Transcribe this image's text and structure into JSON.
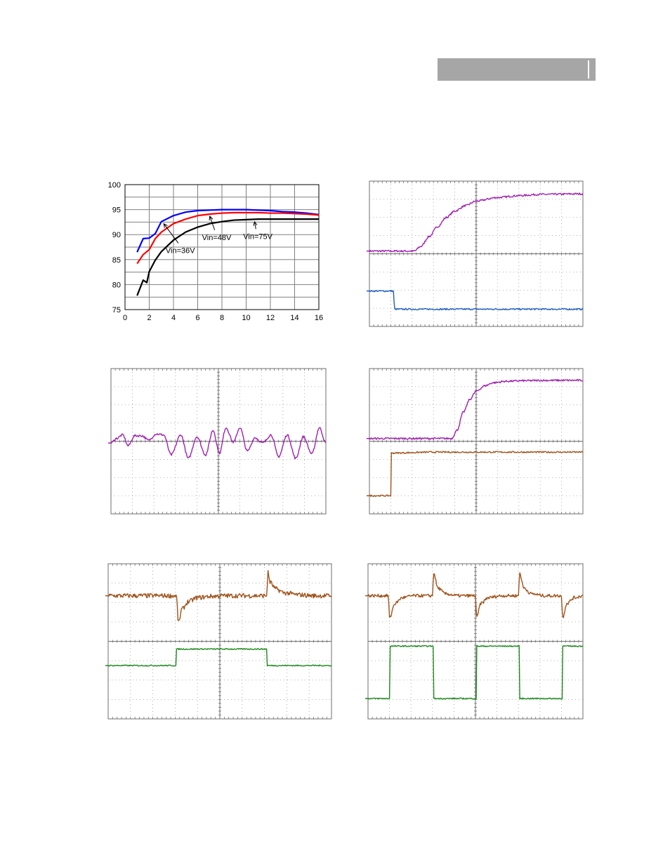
{
  "header": {
    "bar_color": "#a6a6a6"
  },
  "chart_data": [
    {
      "id": "efficiency",
      "type": "line",
      "xlim": [
        0,
        16
      ],
      "ylim": [
        75,
        100
      ],
      "xticks": [
        0,
        2,
        4,
        6,
        8,
        10,
        12,
        14,
        16
      ],
      "yticks": [
        75,
        80,
        85,
        90,
        95,
        100
      ],
      "grid": true,
      "series": [
        {
          "name": "Vin=36V",
          "color": "#0000ff",
          "x": [
            1,
            1.5,
            2,
            2.5,
            3,
            4,
            5,
            6,
            7,
            8,
            9,
            10,
            11,
            12,
            13,
            14,
            15,
            16
          ],
          "y": [
            86.5,
            89.2,
            89.3,
            90.2,
            92.6,
            93.8,
            94.5,
            94.8,
            94.9,
            95.0,
            95.0,
            95.0,
            94.9,
            94.8,
            94.6,
            94.5,
            94.3,
            94.0
          ]
        },
        {
          "name": "Vin=48V",
          "color": "#ff0000",
          "x": [
            1,
            1.5,
            2,
            2.5,
            3,
            4,
            5,
            6,
            7,
            8,
            9,
            10,
            11,
            12,
            13,
            14,
            15,
            16
          ],
          "y": [
            84.2,
            86.0,
            87.0,
            89.2,
            90.5,
            92.2,
            93.1,
            93.8,
            94.1,
            94.3,
            94.4,
            94.4,
            94.4,
            94.3,
            94.3,
            94.2,
            94.1,
            93.9
          ]
        },
        {
          "name": "Vin=75V",
          "color": "#000000",
          "x": [
            1,
            1.5,
            1.8,
            2,
            2.5,
            3,
            4,
            5,
            6,
            7,
            8,
            9,
            10,
            11,
            12,
            13,
            14,
            15,
            16
          ],
          "y": [
            77.8,
            80.9,
            80.4,
            82.6,
            84.9,
            86.6,
            88.9,
            90.5,
            91.5,
            92.2,
            92.6,
            92.9,
            93.0,
            93.1,
            93.1,
            93.1,
            93.1,
            93.1,
            93.1
          ]
        }
      ],
      "annotations": [
        {
          "text": "Vin=36V",
          "at": [
            4.4,
            86.9
          ],
          "arrow_to": [
            3.2,
            92.6
          ]
        },
        {
          "text": "Vin=48V",
          "at": [
            7.4,
            89.5
          ],
          "arrow_to": [
            7.0,
            94.1
          ]
        },
        {
          "text": "Vin=75V",
          "at": [
            10.8,
            89.7
          ],
          "arrow_to": [
            10.7,
            93.0
          ]
        }
      ]
    },
    {
      "id": "startup-scope-1",
      "type": "line",
      "xlim": [
        0,
        10
      ],
      "ylim": [
        0,
        8
      ],
      "grid": true,
      "series": [
        {
          "color": "#a020b0",
          "noise": 0.05,
          "x": [
            0,
            2.1,
            2.4,
            2.8,
            3.2,
            3.6,
            4.0,
            4.5,
            5.0,
            6.0,
            7.0,
            8.0,
            10.0
          ],
          "y": [
            4.15,
            4.15,
            4.4,
            4.95,
            5.5,
            6.0,
            6.35,
            6.65,
            6.9,
            7.1,
            7.2,
            7.27,
            7.3
          ]
        },
        {
          "color": "#1f5fbf",
          "noise": 0.04,
          "x": [
            0,
            1.15,
            1.16,
            10.0
          ],
          "y": [
            1.95,
            1.95,
            0.95,
            0.95
          ]
        }
      ]
    },
    {
      "id": "ripple-scope",
      "type": "line",
      "xlim": [
        0,
        10
      ],
      "ylim": [
        0,
        8
      ],
      "grid": true,
      "series": [
        {
          "color": "#a020b0",
          "noise": 0.06,
          "x": [
            0,
            0.25,
            0.55,
            0.8,
            1.1,
            1.45,
            1.75,
            2.1,
            2.45,
            2.8,
            3.25,
            3.6,
            4.0,
            4.4,
            4.75,
            5.05,
            5.35,
            5.7,
            6.0,
            6.35,
            6.7,
            7.05,
            7.45,
            7.8,
            8.2,
            8.6,
            8.95,
            9.35,
            9.7,
            10.0
          ],
          "y": [
            3.9,
            4.15,
            4.35,
            3.75,
            4.3,
            4.3,
            4.05,
            4.4,
            4.35,
            3.25,
            4.35,
            3.05,
            4.25,
            3.25,
            4.6,
            3.35,
            4.75,
            3.95,
            4.75,
            3.45,
            4.2,
            3.9,
            4.35,
            3.15,
            4.35,
            3.05,
            4.25,
            3.3,
            4.75,
            3.9
          ]
        }
      ]
    },
    {
      "id": "startup-scope-2",
      "type": "line",
      "xlim": [
        0,
        10
      ],
      "ylim": [
        0,
        8
      ],
      "grid": true,
      "series": [
        {
          "color": "#a020b0",
          "noise": 0.05,
          "x": [
            0,
            3.85,
            4.1,
            4.4,
            4.7,
            5.0,
            5.4,
            5.8,
            6.4,
            7.2,
            8.2,
            10.0
          ],
          "y": [
            4.15,
            4.15,
            4.6,
            5.6,
            6.3,
            6.75,
            7.05,
            7.22,
            7.3,
            7.33,
            7.35,
            7.35
          ]
        },
        {
          "color": "#a0521a",
          "noise": 0.04,
          "x": [
            0,
            1.0,
            1.02,
            3.0,
            10.0
          ],
          "y": [
            1.0,
            1.0,
            3.35,
            3.4,
            3.4
          ]
        }
      ]
    },
    {
      "id": "transient-scope-1",
      "type": "line",
      "xlim": [
        0,
        10
      ],
      "ylim": [
        0,
        8
      ],
      "grid": true,
      "series": [
        {
          "color": "#a0521a",
          "noise": 0.12,
          "x": [
            0,
            3.05,
            3.15,
            3.3,
            3.6,
            4.0,
            4.6,
            5.2,
            7.1,
            7.15,
            7.25,
            7.5,
            7.9,
            8.5,
            9.2,
            10.0
          ],
          "y": [
            6.35,
            6.35,
            4.95,
            5.65,
            6.05,
            6.25,
            6.32,
            6.35,
            6.35,
            7.55,
            7.05,
            6.7,
            6.5,
            6.4,
            6.35,
            6.35
          ]
        },
        {
          "color": "#1a8a1a",
          "noise": 0.03,
          "x": [
            0,
            3.05,
            3.06,
            7.1,
            7.11,
            10.0
          ],
          "y": [
            2.75,
            2.75,
            3.6,
            3.6,
            2.75,
            2.75
          ]
        }
      ]
    },
    {
      "id": "transient-scope-2",
      "type": "line",
      "xlim": [
        0,
        10
      ],
      "ylim": [
        0,
        8
      ],
      "grid": true,
      "series": [
        {
          "color": "#a0521a",
          "noise": 0.08,
          "x": [
            0,
            0.95,
            1.0,
            1.25,
            1.6,
            2.1,
            3.0,
            3.05,
            3.25,
            3.6,
            4.2,
            5.0,
            5.05,
            5.25,
            5.6,
            6.2,
            7.0,
            7.05,
            7.25,
            7.6,
            8.2,
            9.0,
            9.05,
            9.25,
            9.6,
            10.0
          ],
          "y": [
            6.35,
            6.35,
            5.2,
            5.95,
            6.25,
            6.35,
            6.35,
            7.55,
            6.75,
            6.45,
            6.35,
            6.35,
            5.2,
            5.95,
            6.25,
            6.35,
            6.35,
            7.55,
            6.75,
            6.45,
            6.35,
            6.35,
            5.2,
            5.95,
            6.25,
            6.35
          ]
        },
        {
          "color": "#1a8a1a",
          "noise": 0.03,
          "x": [
            0,
            1.0,
            1.01,
            3.05,
            3.06,
            5.05,
            5.06,
            7.05,
            7.06,
            9.05,
            9.06,
            10.0
          ],
          "y": [
            1.05,
            1.05,
            3.75,
            3.75,
            1.05,
            1.05,
            3.75,
            3.75,
            1.05,
            1.05,
            3.75,
            3.75
          ]
        }
      ]
    }
  ]
}
